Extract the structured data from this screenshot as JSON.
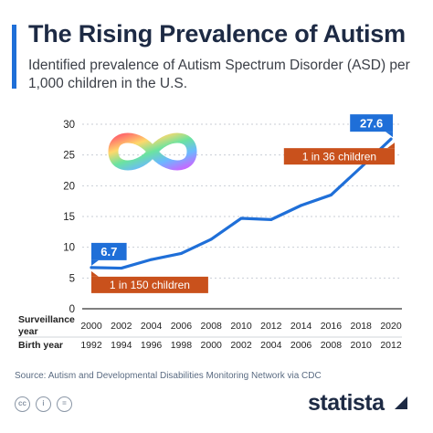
{
  "header": {
    "title": "The Rising Prevalence of Autism",
    "subtitle": "Identified prevalence of Autism Spectrum Disorder (ASD) per 1,000 children in the U.S."
  },
  "chart_data": {
    "type": "line",
    "x": [
      "2000",
      "2002",
      "2004",
      "2006",
      "2008",
      "2010",
      "2012",
      "2014",
      "2016",
      "2018",
      "2020"
    ],
    "birth_years": [
      "1992",
      "1994",
      "1996",
      "1998",
      "2000",
      "2002",
      "2004",
      "2006",
      "2008",
      "2010",
      "2012"
    ],
    "series": [
      {
        "values": [
          6.7,
          6.6,
          8.0,
          9.0,
          11.3,
          14.7,
          14.5,
          16.8,
          18.5,
          23.0,
          27.6
        ],
        "color": "#1f6fd8"
      }
    ],
    "ylim": [
      0,
      30
    ],
    "yticks": [
      0,
      5,
      10,
      15,
      20,
      25,
      30
    ],
    "row_labels": {
      "surveillance": "Surveillance year",
      "birth": "Birth year"
    },
    "grid": true,
    "annotations": [
      {
        "text": "6.7",
        "index": 0,
        "style": "blue"
      },
      {
        "text": "27.6",
        "index": 10,
        "style": "blue"
      },
      {
        "text": "1 in 150 children",
        "index": 0,
        "style": "orange"
      },
      {
        "text": "1 in 36 children",
        "index": 10,
        "style": "orange"
      }
    ],
    "colors": {
      "line": "#1f6fd8",
      "blue_label": "#1f6fd8",
      "orange_label": "#c9511c",
      "grid": "#c9ced6"
    }
  },
  "footer": {
    "source": "Source: Autism and Developmental Disabilities Monitoring Network via CDC",
    "brand": "statista",
    "icons": [
      "creative-commons-icon",
      "attribution-icon",
      "no-derivatives-icon"
    ]
  }
}
